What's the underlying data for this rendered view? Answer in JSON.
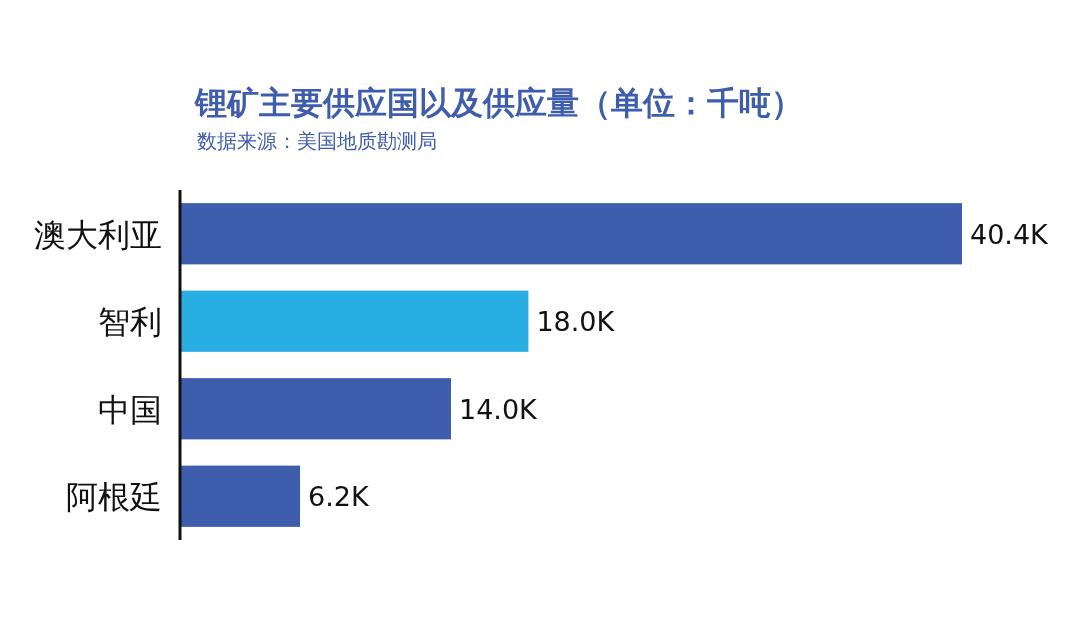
{
  "chart_data": {
    "type": "bar",
    "orientation": "horizontal",
    "title": "锂矿主要供应国以及供应量（单位：千吨）",
    "subtitle": "数据来源：美国地质勘测局",
    "categories": [
      "澳大利亚",
      "智利",
      "中国",
      "阿根廷"
    ],
    "values": [
      40.4,
      18.0,
      14.0,
      6.2
    ],
    "value_labels": [
      "40.4K",
      "18.0K",
      "14.0K",
      "6.2K"
    ],
    "colors": [
      "#3f5dad",
      "#29aee3",
      "#3f5dad",
      "#3f5dad"
    ]
  }
}
